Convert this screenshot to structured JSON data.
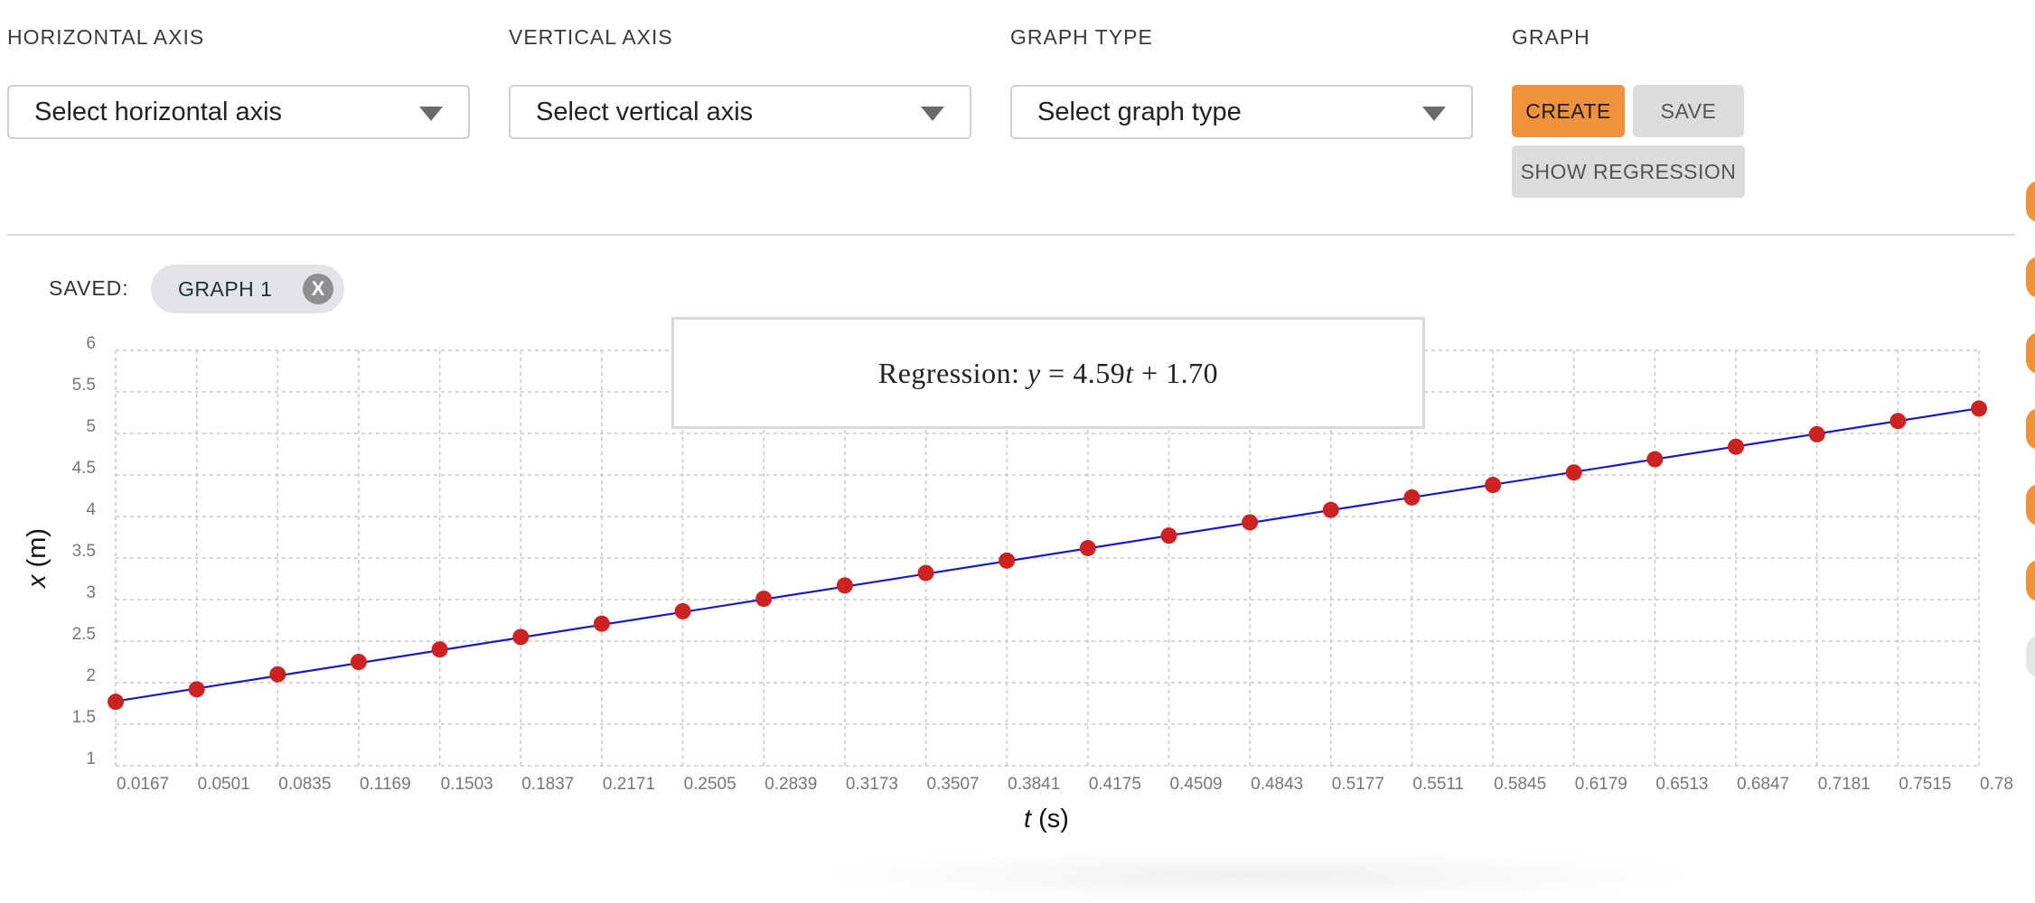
{
  "controls": {
    "horizontal_axis": {
      "label": "HORIZONTAL AXIS",
      "placeholder": "Select horizontal axis"
    },
    "vertical_axis": {
      "label": "VERTICAL AXIS",
      "placeholder": "Select vertical axis"
    },
    "graph_type": {
      "label": "GRAPH TYPE",
      "placeholder": "Select graph type"
    },
    "graph": {
      "label": "GRAPH",
      "create": "CREATE",
      "save": "SAVE",
      "show_regression": "SHOW REGRESSION"
    }
  },
  "saved": {
    "label": "SAVED:",
    "chips": [
      {
        "name": "GRAPH 1",
        "remove": "X"
      }
    ]
  },
  "regression": {
    "prefix": "Regression: ",
    "y": "y",
    "eq": " = 4.59",
    "var": "t",
    "rest": " + 1.70"
  },
  "colors": {
    "accent": "#f0923b",
    "point": "#cc2222",
    "line": "#1a1acc"
  },
  "icons": {
    "dropdown": "chevron-down-icon",
    "remove": "close-icon"
  },
  "chart_data": {
    "type": "scatter",
    "xlabel_var": "t",
    "xlabel_unit": " (s)",
    "ylabel_var": "x",
    "ylabel_unit": " (m)",
    "ylim": [
      1,
      6
    ],
    "yticks": [
      "6",
      "5.5",
      "5",
      "4.5",
      "4",
      "3.5",
      "3",
      "2.5",
      "2",
      "1.5",
      "1"
    ],
    "xticks": [
      "0.0167",
      "0.0501",
      "0.0835",
      "0.1169",
      "0.1503",
      "0.1837",
      "0.2171",
      "0.2505",
      "0.2839",
      "0.3173",
      "0.3507",
      "0.3841",
      "0.4175",
      "0.4509",
      "0.4843",
      "0.5177",
      "0.5511",
      "0.5845",
      "0.6179",
      "0.6513",
      "0.6847",
      "0.7181",
      "0.7515",
      "0.78"
    ],
    "grid": true,
    "series": [
      {
        "x": [
          0.0167,
          0.0501,
          0.0835,
          0.1169,
          0.1503,
          0.1837,
          0.2171,
          0.2505,
          0.2839,
          0.3173,
          0.3507,
          0.3841,
          0.4175,
          0.4509,
          0.4843,
          0.5177,
          0.5511,
          0.5845,
          0.6179,
          0.6513,
          0.6847,
          0.7181,
          0.7515,
          0.7849
        ],
        "y": [
          1.77,
          1.92,
          2.1,
          2.25,
          2.4,
          2.55,
          2.71,
          2.86,
          3.01,
          3.17,
          3.32,
          3.47,
          3.62,
          3.77,
          3.93,
          4.08,
          4.23,
          4.38,
          4.53,
          4.69,
          4.84,
          4.99,
          5.15,
          5.3
        ]
      }
    ],
    "regression": {
      "slope": 4.59,
      "intercept": 1.7
    }
  }
}
